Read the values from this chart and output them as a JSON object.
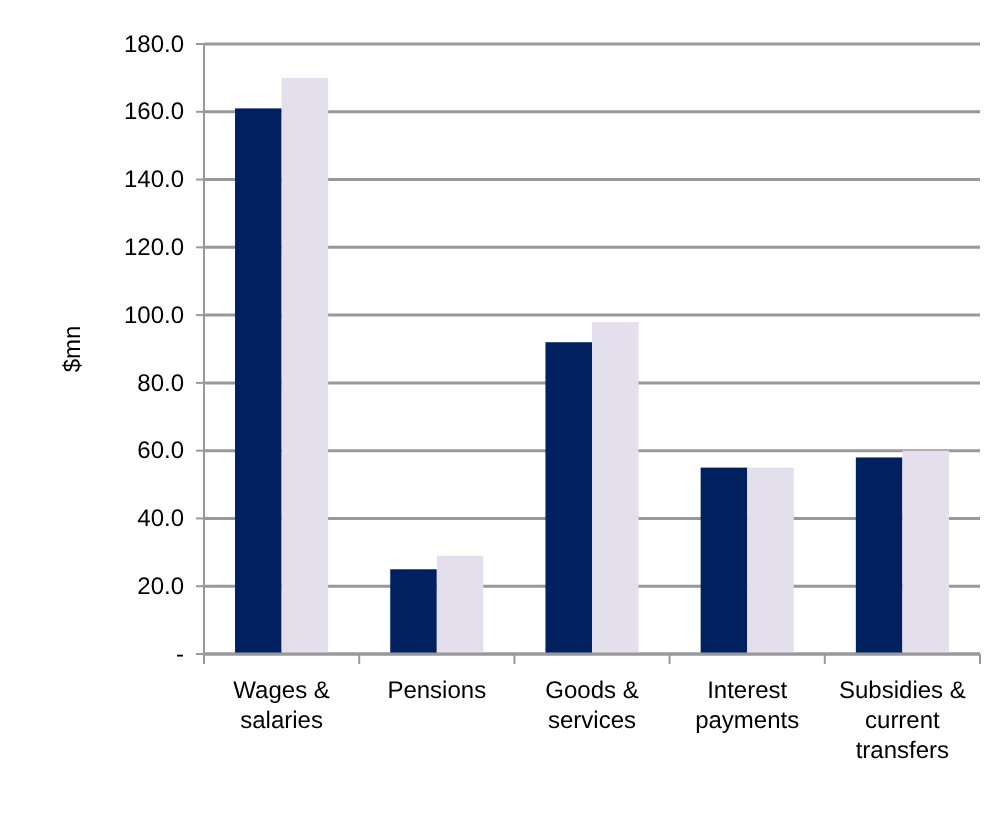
{
  "chart_data": {
    "type": "bar",
    "ylabel": "$mn",
    "categories": [
      "Wages & salaries",
      "Pensions",
      "Goods & services",
      "Interest payments",
      "Subsidies & current transfers"
    ],
    "series": [
      {
        "color": "#002060",
        "values": [
          161,
          25,
          92,
          55,
          58
        ]
      },
      {
        "color": "#e4dfec",
        "values": [
          170,
          29,
          98,
          55,
          60
        ]
      }
    ],
    "ylim": [
      0,
      180
    ],
    "yticks": [
      {
        "value": 0,
        "label": "-"
      },
      {
        "value": 20,
        "label": "20.0"
      },
      {
        "value": 40,
        "label": "40.0"
      },
      {
        "value": 60,
        "label": "60.0"
      },
      {
        "value": 80,
        "label": "80.0"
      },
      {
        "value": 100,
        "label": "100.0"
      },
      {
        "value": 120,
        "label": "120.0"
      },
      {
        "value": 140,
        "label": "140.0"
      },
      {
        "value": 160,
        "label": "160.0"
      },
      {
        "value": 180,
        "label": "180.0"
      }
    ],
    "grid": "y"
  }
}
